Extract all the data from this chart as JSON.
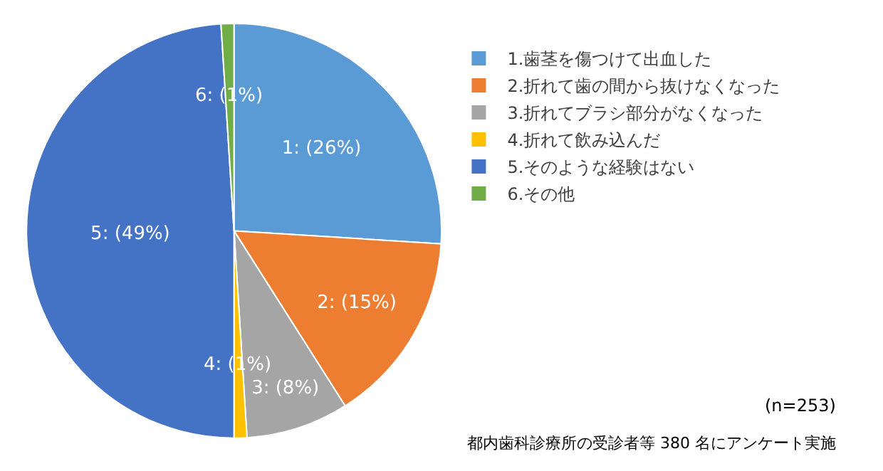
{
  "chart_data": {
    "type": "pie",
    "categories": [
      "1.歯茎を傷つけて出血した",
      "2.折れて歯の間から抜けなくなった",
      "3.折れてブラシ部分がなくなった",
      "4.折れて飲み込んだ",
      "5.そのような経験はない",
      "6.その他"
    ],
    "values": [
      26,
      15,
      8,
      1,
      49,
      1
    ],
    "colors": [
      "#5b9bd5",
      "#ed7d31",
      "#a5a5a5",
      "#ffc000",
      "#4472c4",
      "#70ad47"
    ],
    "value_labels": [
      "1: (26%)",
      "2: (15%)",
      "3: (8%)",
      "4: (1%)",
      "5: (49%)",
      "6: (1%)"
    ],
    "legend": "right",
    "annotations": [
      "(n=253)",
      "都内歯科診療所の受診者等 380 名にアンケート実施"
    ]
  }
}
